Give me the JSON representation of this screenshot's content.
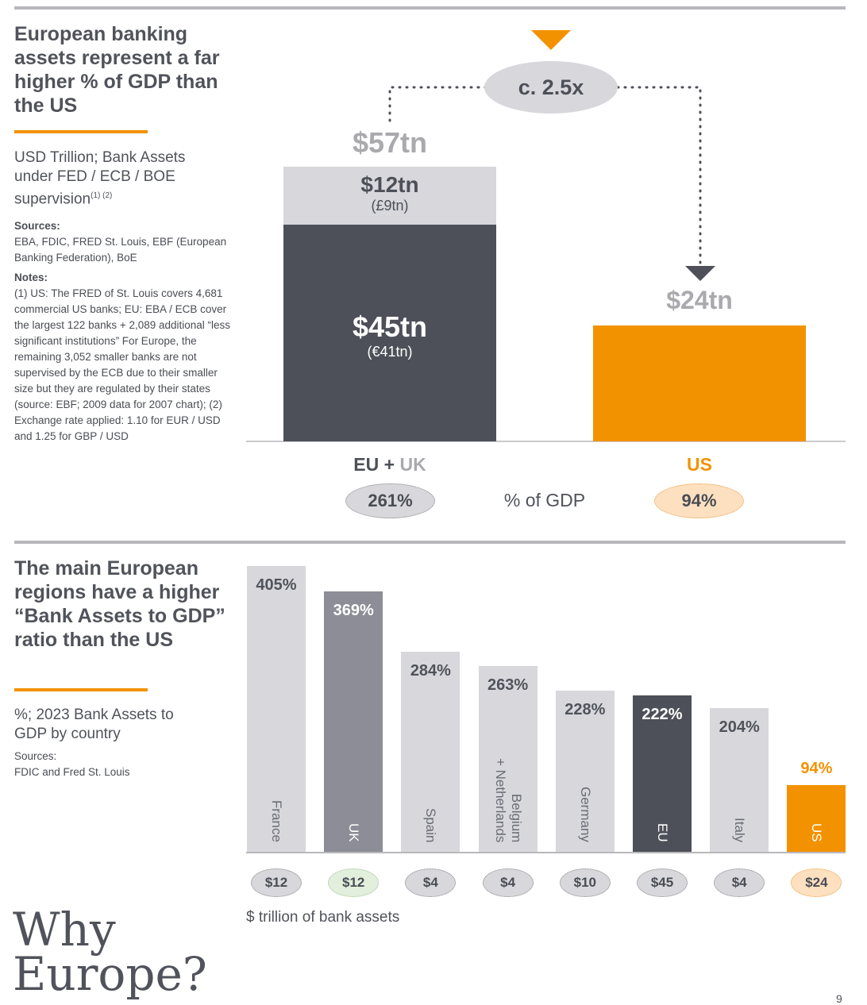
{
  "section1": {
    "title": "European banking assets represent a far higher % of GDP than the US",
    "subtitle": "USD Trillion; Bank Assets under FED / ECB / BOE supervision",
    "subtitle_sup": "(1) (2)",
    "sources_label": "Sources:",
    "sources_text": "EBA, FDIC, FRED St. Louis, EBF (European Banking Federation), BoE",
    "notes_label": "Notes:",
    "notes_text": "(1) US: The FRED of St. Louis covers 4,681 commercial US banks; EU: EBA / ECB cover the largest 122 banks + 2,089 additional “less significant institutions” For Europe, the remaining 3,052 smaller banks are not supervised by the ECB due to their smaller size but they are regulated by their states (source: EBF; 2009 data for 2007 chart); (2) Exchange rate applied: 1.10 for EUR / USD and 1.25 for GBP / USD"
  },
  "chart1_labels": {
    "multiplier": "c. 2.5x",
    "eu_total": "$57tn",
    "uk_value": "$12tn",
    "uk_local": "(£9tn)",
    "eu_value": "$45tn",
    "eu_local": "(€41tn)",
    "us_total": "$24tn",
    "eu_axis_a": "EU",
    "eu_axis_plus": " + ",
    "eu_axis_b": "UK",
    "us_axis": "US",
    "eu_gdp": "261%",
    "gdp_label": "% of GDP",
    "us_gdp": "94%"
  },
  "section2": {
    "title": "The main European regions have a higher “Bank Assets to GDP” ratio than the US",
    "subtitle": "%; 2023 Bank Assets to GDP by country",
    "sources_label": "Sources:",
    "sources_text": "FDIC and Fred St. Louis",
    "assets_caption": "$ trillion of bank assets"
  },
  "brand": {
    "line1": "Why",
    "line2": "Europe?",
    "page_number": "9"
  },
  "colors": {
    "dark": "#4d5058",
    "light": "#d7d7dc",
    "mid": "#8c8d96",
    "orange": "#f39200",
    "grey_text": "#a9a9ae"
  },
  "chart_data": [
    {
      "type": "bar",
      "stacked": true,
      "categories": [
        "EU + UK",
        "US"
      ],
      "series": [
        {
          "name": "EU",
          "values": [
            45,
            24
          ]
        },
        {
          "name": "UK",
          "values": [
            12,
            0
          ]
        }
      ],
      "totals": [
        57,
        24
      ],
      "gdp_percent": [
        261,
        94
      ],
      "ylim": [
        0,
        60
      ]
    },
    {
      "type": "bar",
      "categories": [
        "France",
        "UK",
        "Spain",
        "Belgium\n+ Netherlands",
        "Germany",
        "EU",
        "Italy",
        "US"
      ],
      "values": [
        405,
        369,
        284,
        263,
        228,
        222,
        204,
        94
      ],
      "value_labels": [
        "405%",
        "369%",
        "284%",
        "263%",
        "228%",
        "222%",
        "204%",
        "94%"
      ],
      "assets": [
        "$12",
        "$12",
        "$4",
        "$4",
        "$10",
        "$45",
        "$4",
        "$24"
      ],
      "ylim": [
        0,
        405
      ]
    }
  ]
}
